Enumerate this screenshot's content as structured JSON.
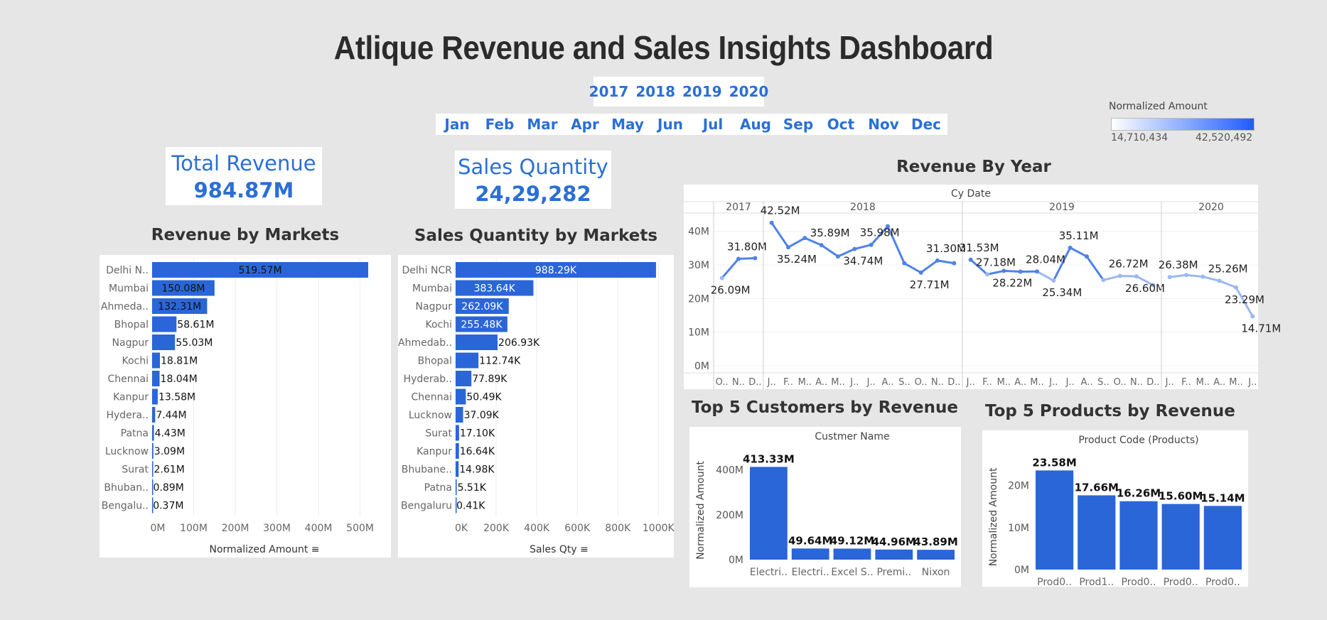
{
  "dashboard": {
    "title": "Atlique Revenue and  Sales Insights Dashboard",
    "years": [
      "2017",
      "2018",
      "2019",
      "2020"
    ],
    "months": [
      "Jan",
      "Feb",
      "Mar",
      "Apr",
      "May",
      "Jun",
      "Jul",
      "Aug",
      "Sep",
      "Oct",
      "Nov",
      "Dec"
    ],
    "legend": {
      "title": "Normalized Amount",
      "min": "14,710,434",
      "max": "42,520,492",
      "color_low": "#ffffff",
      "color_high": "#1f5cff"
    },
    "kpi_revenue": {
      "label": "Total Revenue",
      "value": "984.87M"
    },
    "kpi_quantity": {
      "label": "Sales Quantity",
      "value": "24,29,282"
    },
    "colors": {
      "bar": "#2a66d8",
      "line": "#4f82e8",
      "line_light": "#9bb8f0",
      "accent_text": "#2a6fd6"
    }
  },
  "chart_data": [
    {
      "id": "revenue_by_markets",
      "type": "bar",
      "orientation": "horizontal",
      "title": "Revenue by Markets",
      "xlabel": "Normalized Amount",
      "categories": [
        "Delhi N..",
        "Mumbai",
        "Ahmeda..",
        "Bhopal",
        "Nagpur",
        "Kochi",
        "Chennai",
        "Kanpur",
        "Hydera..",
        "Patna",
        "Lucknow",
        "Surat",
        "Bhuban..",
        "Bengalu.."
      ],
      "values": [
        519.57,
        150.08,
        132.31,
        58.61,
        55.03,
        18.81,
        18.04,
        13.58,
        7.44,
        4.43,
        3.09,
        2.61,
        0.89,
        0.37
      ],
      "labels": [
        "519.57M",
        "150.08M",
        "132.31M",
        "58.61M",
        "55.03M",
        "18.81M",
        "18.04M",
        "13.58M",
        "7.44M",
        "4.43M",
        "3.09M",
        "2.61M",
        "0.89M",
        "0.37M"
      ],
      "xticks": [
        "0M",
        "100M",
        "200M",
        "300M",
        "400M",
        "500M"
      ],
      "xlim": [
        0,
        540
      ]
    },
    {
      "id": "sales_qty_by_markets",
      "type": "bar",
      "orientation": "horizontal",
      "title": "Sales Quantity by Markets",
      "xlabel": "Sales Qty",
      "categories": [
        "Delhi NCR",
        "Mumbai",
        "Nagpur",
        "Kochi",
        "Ahmedab..",
        "Bhopal",
        "Hyderab..",
        "Chennai",
        "Lucknow",
        "Surat",
        "Kanpur",
        "Bhubane..",
        "Patna",
        "Bengaluru"
      ],
      "values": [
        988.29,
        383.64,
        262.09,
        255.48,
        206.93,
        112.74,
        77.89,
        50.49,
        37.09,
        17.1,
        16.64,
        14.98,
        5.51,
        0.41
      ],
      "labels": [
        "988.29K",
        "383.64K",
        "262.09K",
        "255.48K",
        "206.93K",
        "112.74K",
        "77.89K",
        "50.49K",
        "37.09K",
        "17.10K",
        "16.64K",
        "14.98K",
        "5.51K",
        "0.41K"
      ],
      "xticks": [
        "0K",
        "200K",
        "400K",
        "600K",
        "800K",
        "1000K"
      ],
      "xlim": [
        0,
        1020
      ]
    },
    {
      "id": "revenue_by_year",
      "type": "line",
      "title": "Revenue By Year",
      "header": "Cy Date",
      "ylim": [
        0,
        45
      ],
      "yticks": [
        "0M",
        "10M",
        "20M",
        "30M",
        "40M"
      ],
      "panels": [
        {
          "year": "2017",
          "months": [
            "O..",
            "N..",
            "D.."
          ],
          "values": [
            26.09,
            31.8,
            32.0
          ],
          "labels": [
            {
              "i": 0,
              "text": "26.09M",
              "pos": "below"
            },
            {
              "i": 1,
              "text": "31.80M",
              "pos": "above"
            }
          ]
        },
        {
          "year": "2018",
          "months": [
            "J..",
            "F..",
            "M..",
            "A..",
            "M..",
            "J..",
            "J..",
            "A..",
            "S..",
            "O..",
            "N..",
            "D.."
          ],
          "values": [
            42.52,
            35.24,
            38.0,
            35.89,
            32.5,
            34.74,
            35.98,
            41.5,
            30.5,
            27.71,
            31.3,
            30.5
          ],
          "labels": [
            {
              "i": 0,
              "text": "42.52M",
              "pos": "above"
            },
            {
              "i": 1,
              "text": "35.24M",
              "pos": "below"
            },
            {
              "i": 3,
              "text": "35.89M",
              "pos": "above"
            },
            {
              "i": 5,
              "text": "34.74M",
              "pos": "below"
            },
            {
              "i": 6,
              "text": "35.98M",
              "pos": "above"
            },
            {
              "i": 9,
              "text": "27.71M",
              "pos": "below"
            },
            {
              "i": 10,
              "text": "31.30M",
              "pos": "above"
            }
          ]
        },
        {
          "year": "2019",
          "months": [
            "J..",
            "F..",
            "M..",
            "A..",
            "M..",
            "J..",
            "J..",
            "A..",
            "S..",
            "O..",
            "N..",
            "D.."
          ],
          "values": [
            31.53,
            27.18,
            28.22,
            28.0,
            28.04,
            25.34,
            35.11,
            32.5,
            25.5,
            26.72,
            26.6,
            24.0
          ],
          "labels": [
            {
              "i": 0,
              "text": "31.53M",
              "pos": "above"
            },
            {
              "i": 1,
              "text": "27.18M",
              "pos": "above"
            },
            {
              "i": 2,
              "text": "28.22M",
              "pos": "below"
            },
            {
              "i": 4,
              "text": "28.04M",
              "pos": "above"
            },
            {
              "i": 5,
              "text": "25.34M",
              "pos": "below"
            },
            {
              "i": 6,
              "text": "35.11M",
              "pos": "above"
            },
            {
              "i": 9,
              "text": "26.72M",
              "pos": "above"
            },
            {
              "i": 10,
              "text": "26.60M",
              "pos": "below"
            }
          ]
        },
        {
          "year": "2020",
          "months": [
            "J..",
            "F..",
            "M..",
            "A..",
            "M..",
            "J.."
          ],
          "values": [
            26.38,
            27.0,
            26.5,
            25.26,
            23.29,
            14.71
          ],
          "labels": [
            {
              "i": 0,
              "text": "26.38M",
              "pos": "above"
            },
            {
              "i": 3,
              "text": "25.26M",
              "pos": "above"
            },
            {
              "i": 4,
              "text": "23.29M",
              "pos": "below"
            },
            {
              "i": 5,
              "text": "14.71M",
              "pos": "below"
            }
          ]
        }
      ]
    },
    {
      "id": "top5_customers",
      "type": "bar",
      "title": "Top 5 Customers by Revenue",
      "header": "Custmer Name",
      "ylabel": "Normalized Amount",
      "categories": [
        "Electri..",
        "Electri..",
        "Excel S..",
        "Premi..",
        "Nixon"
      ],
      "values": [
        413.33,
        49.64,
        49.12,
        44.96,
        43.89
      ],
      "labels": [
        "413.33M",
        "49.64M",
        "49.12M",
        "44.96M",
        "43.89M"
      ],
      "yticks": [
        "0M",
        "200M",
        "400M"
      ],
      "ylim": [
        0,
        440
      ]
    },
    {
      "id": "top5_products",
      "type": "bar",
      "title": "Top 5 Products by Revenue",
      "header": "Product Code (Products)",
      "ylabel": "Normalized Amount",
      "categories": [
        "Prod0..",
        "Prod1..",
        "Prod0..",
        "Prod0..",
        "Prod0.."
      ],
      "values": [
        23.58,
        17.66,
        16.26,
        15.6,
        15.14
      ],
      "labels": [
        "23.58M",
        "17.66M",
        "16.26M",
        "15.60M",
        "15.14M"
      ],
      "yticks": [
        "0M",
        "10M",
        "20M"
      ],
      "ylim": [
        0,
        25
      ]
    }
  ]
}
